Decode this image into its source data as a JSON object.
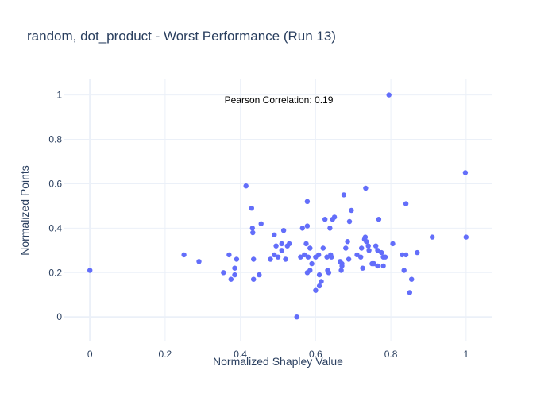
{
  "chart_data": {
    "type": "scatter",
    "title": "random, dot_product - Worst Performance (Run 13)",
    "xlabel": "Normalized Shapley Value",
    "ylabel": "Normalized Points",
    "xlim": [
      -0.07,
      1.07
    ],
    "ylim": [
      -0.11,
      1.07
    ],
    "grid": true,
    "marker_color": "#636efa",
    "annotation": "Pearson Correlation: 0.19",
    "x_ticks": [
      0,
      0.2,
      0.4,
      0.6,
      0.8,
      1
    ],
    "x_tick_labels": [
      "0",
      "0.2",
      "0.4",
      "0.6",
      "0.8",
      "1"
    ],
    "y_ticks": [
      0,
      0.2,
      0.4,
      0.6,
      0.8,
      1
    ],
    "y_tick_labels": [
      "0",
      "0.2",
      "0.4",
      "0.6",
      "0.8",
      "1"
    ],
    "points": [
      [
        0.0,
        0.21
      ],
      [
        0.25,
        0.28
      ],
      [
        0.29,
        0.25
      ],
      [
        0.355,
        0.2
      ],
      [
        0.37,
        0.28
      ],
      [
        0.375,
        0.17
      ],
      [
        0.385,
        0.22
      ],
      [
        0.385,
        0.19
      ],
      [
        0.39,
        0.26
      ],
      [
        0.415,
        0.59
      ],
      [
        0.43,
        0.49
      ],
      [
        0.432,
        0.4
      ],
      [
        0.433,
        0.38
      ],
      [
        0.435,
        0.26
      ],
      [
        0.435,
        0.17
      ],
      [
        0.45,
        0.19
      ],
      [
        0.455,
        0.42
      ],
      [
        0.48,
        0.26
      ],
      [
        0.49,
        0.37
      ],
      [
        0.49,
        0.28
      ],
      [
        0.495,
        0.32
      ],
      [
        0.5,
        0.27
      ],
      [
        0.51,
        0.3
      ],
      [
        0.51,
        0.33
      ],
      [
        0.515,
        0.39
      ],
      [
        0.52,
        0.26
      ],
      [
        0.525,
        0.32
      ],
      [
        0.53,
        0.33
      ],
      [
        0.55,
        0.0
      ],
      [
        0.56,
        0.27
      ],
      [
        0.565,
        0.4
      ],
      [
        0.57,
        0.28
      ],
      [
        0.575,
        0.33
      ],
      [
        0.578,
        0.52
      ],
      [
        0.578,
        0.41
      ],
      [
        0.578,
        0.2
      ],
      [
        0.58,
        0.27
      ],
      [
        0.585,
        0.31
      ],
      [
        0.585,
        0.21
      ],
      [
        0.59,
        0.24
      ],
      [
        0.6,
        0.27
      ],
      [
        0.6,
        0.12
      ],
      [
        0.608,
        0.28
      ],
      [
        0.61,
        0.19
      ],
      [
        0.61,
        0.14
      ],
      [
        0.615,
        0.16
      ],
      [
        0.62,
        0.31
      ],
      [
        0.625,
        0.44
      ],
      [
        0.63,
        0.27
      ],
      [
        0.632,
        0.21
      ],
      [
        0.635,
        0.2
      ],
      [
        0.638,
        0.4
      ],
      [
        0.64,
        0.28
      ],
      [
        0.642,
        0.27
      ],
      [
        0.645,
        0.44
      ],
      [
        0.65,
        0.45
      ],
      [
        0.665,
        0.25
      ],
      [
        0.668,
        0.21
      ],
      [
        0.67,
        0.23
      ],
      [
        0.67,
        0.24
      ],
      [
        0.675,
        0.55
      ],
      [
        0.68,
        0.31
      ],
      [
        0.685,
        0.34
      ],
      [
        0.688,
        0.26
      ],
      [
        0.69,
        0.43
      ],
      [
        0.695,
        0.48
      ],
      [
        0.71,
        0.28
      ],
      [
        0.72,
        0.27
      ],
      [
        0.722,
        0.31
      ],
      [
        0.725,
        0.22
      ],
      [
        0.73,
        0.35
      ],
      [
        0.732,
        0.36
      ],
      [
        0.733,
        0.58
      ],
      [
        0.735,
        0.34
      ],
      [
        0.74,
        0.32
      ],
      [
        0.742,
        0.3
      ],
      [
        0.75,
        0.24
      ],
      [
        0.755,
        0.24
      ],
      [
        0.76,
        0.32
      ],
      [
        0.765,
        0.3
      ],
      [
        0.765,
        0.23
      ],
      [
        0.768,
        0.44
      ],
      [
        0.775,
        0.29
      ],
      [
        0.78,
        0.23
      ],
      [
        0.78,
        0.27
      ],
      [
        0.785,
        0.27
      ],
      [
        0.795,
        1.0
      ],
      [
        0.805,
        0.33
      ],
      [
        0.83,
        0.28
      ],
      [
        0.835,
        0.21
      ],
      [
        0.84,
        0.51
      ],
      [
        0.84,
        0.28
      ],
      [
        0.85,
        0.11
      ],
      [
        0.855,
        0.17
      ],
      [
        0.87,
        0.29
      ],
      [
        0.91,
        0.36
      ],
      [
        0.998,
        0.65
      ],
      [
        1.0,
        0.36
      ]
    ]
  }
}
